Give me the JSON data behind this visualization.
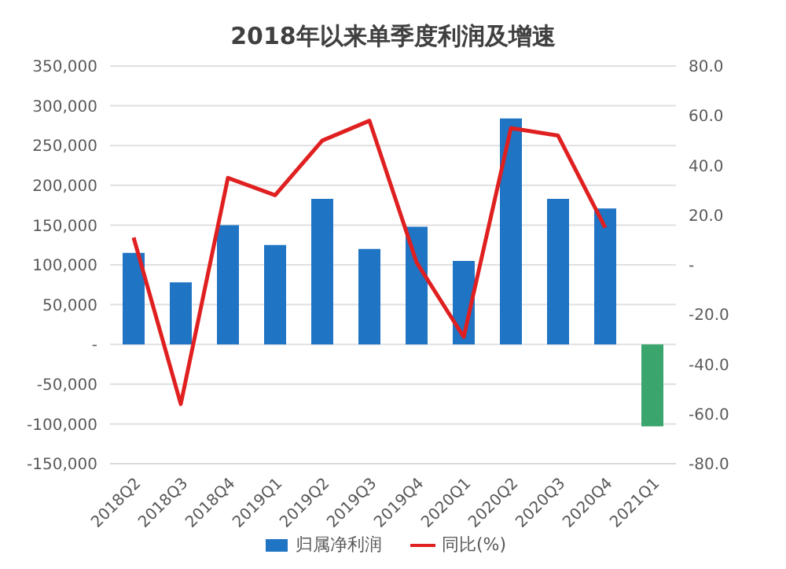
{
  "chart_data": {
    "type": "bar",
    "title": "2018年以来单季度利润及增速",
    "categories": [
      "2018Q2",
      "2018Q3",
      "2018Q4",
      "2019Q1",
      "2019Q2",
      "2019Q3",
      "2019Q4",
      "2020Q1",
      "2020Q2",
      "2020Q3",
      "2020Q4",
      "2021Q1"
    ],
    "series": [
      {
        "name": "归属净利润",
        "color": "#1f74c4",
        "colors": [
          "#1f74c4",
          "#1f74c4",
          "#1f74c4",
          "#1f74c4",
          "#1f74c4",
          "#1f74c4",
          "#1f74c4",
          "#1f74c4",
          "#1f74c4",
          "#1f74c4",
          "#1f74c4",
          "#3aa56c"
        ],
        "values": [
          115000,
          78000,
          150000,
          125000,
          183000,
          120000,
          148000,
          105000,
          284000,
          183000,
          171000,
          -103000
        ]
      },
      {
        "name": "同比(%)",
        "type": "line",
        "axis": "y2",
        "color": "#e02020",
        "values": [
          11,
          -56,
          35,
          28,
          50,
          58,
          1,
          -29,
          55,
          52,
          15,
          null
        ]
      }
    ],
    "ylim": [
      -150000,
      350000
    ],
    "yticks": [
      {
        "value": -150000,
        "label": "-150,000"
      },
      {
        "value": -100000,
        "label": "-100,000"
      },
      {
        "value": -50000,
        "label": "-50,000"
      },
      {
        "value": 0,
        "label": "-"
      },
      {
        "value": 50000,
        "label": "50,000"
      },
      {
        "value": 100000,
        "label": "100,000"
      },
      {
        "value": 150000,
        "label": "150,000"
      },
      {
        "value": 200000,
        "label": "200,000"
      },
      {
        "value": 250000,
        "label": "250,000"
      },
      {
        "value": 300000,
        "label": "300,000"
      },
      {
        "value": 350000,
        "label": "350,000"
      }
    ],
    "y2lim": [
      -80,
      80
    ],
    "y2ticks": [
      {
        "value": -80,
        "label": "-80.0"
      },
      {
        "value": -60,
        "label": "-60.0"
      },
      {
        "value": -40,
        "label": "-40.0"
      },
      {
        "value": -20,
        "label": "-20.0"
      },
      {
        "value": 0,
        "label": "-"
      },
      {
        "value": 20,
        "label": "20.0"
      },
      {
        "value": 40,
        "label": "40.0"
      },
      {
        "value": 60,
        "label": "60.0"
      },
      {
        "value": 80,
        "label": "80.0"
      }
    ],
    "grid": "y",
    "legend": "bottom",
    "marker": "none",
    "line_style": "solid"
  }
}
